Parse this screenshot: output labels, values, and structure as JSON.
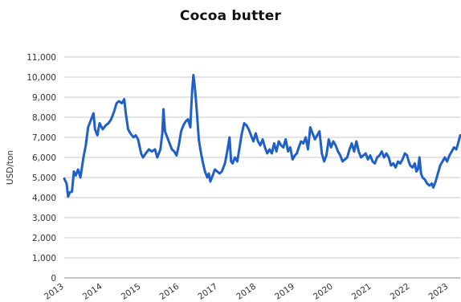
{
  "chart_data": {
    "type": "line",
    "title": "Cocoa butter",
    "xlabel": "",
    "ylabel": "USD/ton",
    "ylim": [
      0,
      11000
    ],
    "xlim": [
      2013.0,
      2023.3
    ],
    "grid": "horizontal",
    "yticks": [
      "0",
      "1,000",
      "2,000",
      "3,000",
      "4,000",
      "5,000",
      "6,000",
      "7,000",
      "8,000",
      "9,000",
      "10,000",
      "11,000"
    ],
    "xticks": [
      "2013",
      "2014",
      "2015",
      "2016",
      "2017",
      "2018",
      "2019",
      "2020",
      "2021",
      "2022",
      "2023"
    ],
    "series": [
      {
        "name": "",
        "color": "#1f5fc9",
        "points": [
          [
            2013.0,
            4950
          ],
          [
            2013.06,
            4700
          ],
          [
            2013.1,
            4050
          ],
          [
            2013.14,
            4250
          ],
          [
            2013.2,
            4300
          ],
          [
            2013.25,
            5300
          ],
          [
            2013.3,
            5100
          ],
          [
            2013.36,
            5400
          ],
          [
            2013.42,
            5000
          ],
          [
            2013.5,
            6000
          ],
          [
            2013.56,
            6600
          ],
          [
            2013.62,
            7500
          ],
          [
            2013.7,
            7900
          ],
          [
            2013.76,
            8200
          ],
          [
            2013.8,
            7400
          ],
          [
            2013.86,
            7100
          ],
          [
            2013.92,
            7700
          ],
          [
            2014.0,
            7400
          ],
          [
            2014.08,
            7600
          ],
          [
            2014.15,
            7700
          ],
          [
            2014.22,
            7900
          ],
          [
            2014.3,
            8300
          ],
          [
            2014.36,
            8700
          ],
          [
            2014.42,
            8800
          ],
          [
            2014.5,
            8700
          ],
          [
            2014.56,
            8900
          ],
          [
            2014.6,
            8200
          ],
          [
            2014.66,
            7400
          ],
          [
            2014.72,
            7200
          ],
          [
            2014.8,
            7000
          ],
          [
            2014.86,
            7100
          ],
          [
            2014.92,
            6900
          ],
          [
            2015.0,
            6200
          ],
          [
            2015.05,
            6000
          ],
          [
            2015.12,
            6200
          ],
          [
            2015.2,
            6400
          ],
          [
            2015.28,
            6300
          ],
          [
            2015.36,
            6400
          ],
          [
            2015.42,
            6000
          ],
          [
            2015.5,
            6400
          ],
          [
            2015.55,
            7200
          ],
          [
            2015.58,
            8400
          ],
          [
            2015.62,
            7300
          ],
          [
            2015.68,
            7000
          ],
          [
            2015.72,
            6800
          ],
          [
            2015.76,
            6600
          ],
          [
            2015.8,
            6400
          ],
          [
            2015.86,
            6300
          ],
          [
            2015.92,
            6100
          ],
          [
            2015.98,
            6600
          ],
          [
            2016.04,
            7300
          ],
          [
            2016.1,
            7600
          ],
          [
            2016.16,
            7800
          ],
          [
            2016.22,
            7900
          ],
          [
            2016.28,
            7500
          ],
          [
            2016.3,
            8400
          ],
          [
            2016.33,
            9400
          ],
          [
            2016.36,
            10100
          ],
          [
            2016.39,
            9600
          ],
          [
            2016.42,
            9000
          ],
          [
            2016.46,
            8000
          ],
          [
            2016.5,
            6900
          ],
          [
            2016.55,
            6300
          ],
          [
            2016.6,
            5800
          ],
          [
            2016.66,
            5300
          ],
          [
            2016.72,
            5000
          ],
          [
            2016.76,
            5200
          ],
          [
            2016.8,
            4800
          ],
          [
            2016.86,
            5100
          ],
          [
            2016.92,
            5400
          ],
          [
            2016.98,
            5300
          ],
          [
            2017.04,
            5200
          ],
          [
            2017.1,
            5300
          ],
          [
            2017.18,
            5700
          ],
          [
            2017.24,
            6300
          ],
          [
            2017.3,
            7000
          ],
          [
            2017.34,
            5800
          ],
          [
            2017.38,
            5700
          ],
          [
            2017.44,
            6000
          ],
          [
            2017.5,
            5800
          ],
          [
            2017.56,
            6500
          ],
          [
            2017.62,
            7200
          ],
          [
            2017.68,
            7700
          ],
          [
            2017.74,
            7600
          ],
          [
            2017.8,
            7400
          ],
          [
            2017.86,
            7100
          ],
          [
            2017.92,
            6800
          ],
          [
            2017.98,
            7200
          ],
          [
            2018.04,
            6800
          ],
          [
            2018.1,
            6600
          ],
          [
            2018.16,
            6900
          ],
          [
            2018.22,
            6500
          ],
          [
            2018.28,
            6200
          ],
          [
            2018.34,
            6400
          ],
          [
            2018.4,
            6200
          ],
          [
            2018.46,
            6700
          ],
          [
            2018.52,
            6300
          ],
          [
            2018.58,
            6800
          ],
          [
            2018.64,
            6600
          ],
          [
            2018.7,
            6500
          ],
          [
            2018.76,
            6900
          ],
          [
            2018.82,
            6300
          ],
          [
            2018.88,
            6500
          ],
          [
            2018.94,
            5900
          ],
          [
            2019.0,
            6100
          ],
          [
            2019.05,
            6200
          ],
          [
            2019.1,
            6500
          ],
          [
            2019.16,
            6800
          ],
          [
            2019.22,
            6700
          ],
          [
            2019.28,
            7000
          ],
          [
            2019.34,
            6400
          ],
          [
            2019.4,
            7500
          ],
          [
            2019.46,
            7200
          ],
          [
            2019.52,
            6900
          ],
          [
            2019.58,
            7100
          ],
          [
            2019.64,
            7300
          ],
          [
            2019.7,
            6200
          ],
          [
            2019.76,
            5800
          ],
          [
            2019.82,
            6100
          ],
          [
            2019.88,
            6900
          ],
          [
            2019.94,
            6500
          ],
          [
            2020.0,
            6800
          ],
          [
            2020.06,
            6600
          ],
          [
            2020.12,
            6300
          ],
          [
            2020.18,
            6100
          ],
          [
            2020.24,
            5800
          ],
          [
            2020.3,
            5900
          ],
          [
            2020.36,
            6000
          ],
          [
            2020.42,
            6400
          ],
          [
            2020.48,
            6700
          ],
          [
            2020.54,
            6300
          ],
          [
            2020.6,
            6800
          ],
          [
            2020.66,
            6300
          ],
          [
            2020.72,
            6000
          ],
          [
            2020.78,
            6100
          ],
          [
            2020.84,
            6200
          ],
          [
            2020.9,
            5900
          ],
          [
            2020.96,
            6100
          ],
          [
            2021.02,
            5800
          ],
          [
            2021.08,
            5700
          ],
          [
            2021.14,
            6000
          ],
          [
            2021.2,
            6100
          ],
          [
            2021.26,
            6300
          ],
          [
            2021.32,
            6000
          ],
          [
            2021.38,
            6200
          ],
          [
            2021.44,
            6000
          ],
          [
            2021.5,
            5600
          ],
          [
            2021.56,
            5700
          ],
          [
            2021.62,
            5500
          ],
          [
            2021.68,
            5800
          ],
          [
            2021.74,
            5700
          ],
          [
            2021.8,
            5900
          ],
          [
            2021.86,
            6200
          ],
          [
            2021.92,
            6100
          ],
          [
            2021.96,
            5800
          ],
          [
            2022.0,
            5600
          ],
          [
            2022.06,
            5500
          ],
          [
            2022.12,
            5700
          ],
          [
            2022.16,
            5300
          ],
          [
            2022.2,
            5400
          ],
          [
            2022.24,
            6000
          ],
          [
            2022.28,
            5200
          ],
          [
            2022.32,
            5000
          ],
          [
            2022.38,
            4900
          ],
          [
            2022.44,
            4700
          ],
          [
            2022.5,
            4600
          ],
          [
            2022.56,
            4700
          ],
          [
            2022.6,
            4500
          ],
          [
            2022.66,
            4800
          ],
          [
            2022.72,
            5200
          ],
          [
            2022.78,
            5600
          ],
          [
            2022.84,
            5800
          ],
          [
            2022.9,
            6000
          ],
          [
            2022.96,
            5800
          ],
          [
            2023.02,
            6100
          ],
          [
            2023.08,
            6300
          ],
          [
            2023.14,
            6500
          ],
          [
            2023.2,
            6400
          ],
          [
            2023.26,
            6800
          ],
          [
            2023.3,
            7100
          ]
        ]
      }
    ]
  }
}
